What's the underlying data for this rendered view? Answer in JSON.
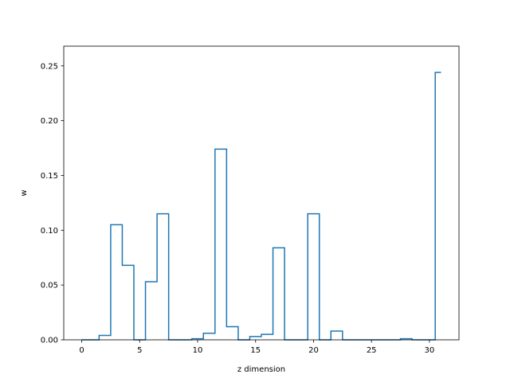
{
  "chart_data": {
    "type": "line",
    "drawstyle": "steps-mid",
    "title": "",
    "xlabel": "z dimension",
    "ylabel": "w",
    "xlim": [
      -1.55,
      32.55
    ],
    "ylim": [
      0,
      0.268
    ],
    "xticks": [
      0,
      5,
      10,
      15,
      20,
      25,
      30
    ],
    "yticks": [
      0.0,
      0.05,
      0.1,
      0.15,
      0.2,
      0.25
    ],
    "ytick_labels": [
      "0.00",
      "0.05",
      "0.10",
      "0.15",
      "0.20",
      "0.25"
    ],
    "grid": false,
    "legend": "none",
    "series": [
      {
        "color": "#1f77b4",
        "x": [
          0,
          1,
          2,
          3,
          4,
          5,
          6,
          7,
          8,
          9,
          10,
          11,
          12,
          13,
          14,
          15,
          16,
          17,
          18,
          19,
          20,
          21,
          22,
          23,
          24,
          25,
          26,
          27,
          28,
          29,
          30,
          31
        ],
        "values": [
          0.0,
          0.0,
          0.004,
          0.105,
          0.068,
          0.0,
          0.053,
          0.115,
          0.0,
          0.0,
          0.001,
          0.006,
          0.174,
          0.012,
          0.0,
          0.003,
          0.005,
          0.084,
          0.0,
          0.0,
          0.115,
          0.0,
          0.008,
          0.0,
          0.0,
          0.0,
          0.0,
          0.0,
          0.001,
          0.0,
          0.0,
          0.244
        ]
      }
    ]
  }
}
